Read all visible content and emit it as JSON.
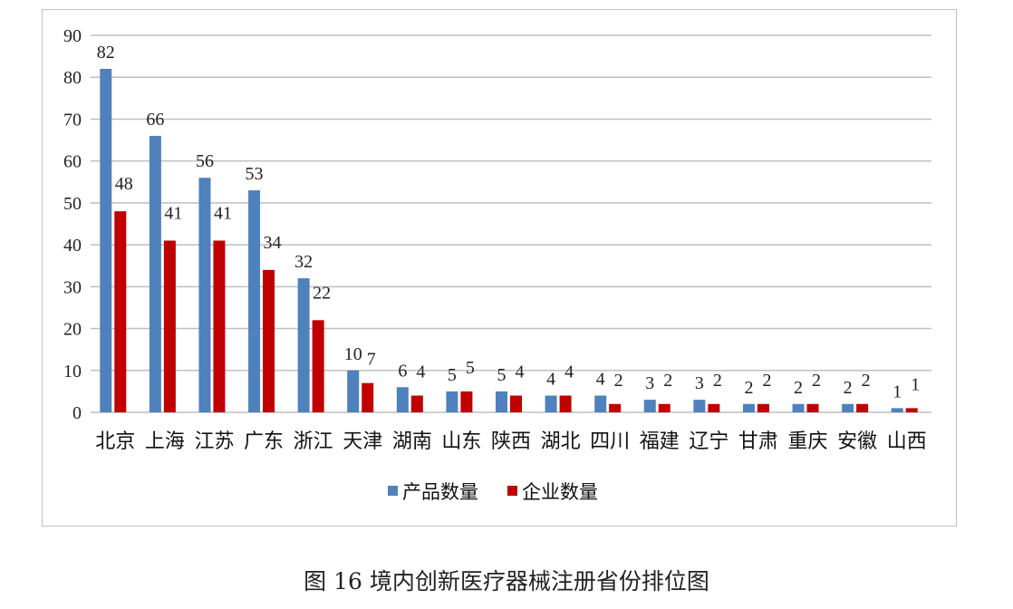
{
  "chart_data": {
    "type": "bar",
    "title": "图 16 境内创新医疗器械注册省份排位图",
    "xlabel": "",
    "ylabel": "",
    "ylim": [
      0,
      90
    ],
    "yticks": [
      0,
      10,
      20,
      30,
      40,
      50,
      60,
      70,
      80,
      90
    ],
    "grid": true,
    "legend_position": "bottom",
    "categories": [
      "北京",
      "上海",
      "江苏",
      "广东",
      "浙江",
      "天津",
      "湖南",
      "山东",
      "陕西",
      "湖北",
      "四川",
      "福建",
      "辽宁",
      "甘肃",
      "重庆",
      "安徽",
      "山西"
    ],
    "series": [
      {
        "name": "产品数量",
        "color": "#4f81bd",
        "values": [
          82,
          66,
          56,
          53,
          32,
          10,
          6,
          5,
          5,
          4,
          4,
          3,
          3,
          2,
          2,
          2,
          1
        ]
      },
      {
        "name": "企业数量",
        "color": "#c00000",
        "values": [
          48,
          41,
          41,
          34,
          22,
          7,
          4,
          5,
          4,
          4,
          2,
          2,
          2,
          2,
          2,
          2,
          1
        ]
      }
    ]
  }
}
